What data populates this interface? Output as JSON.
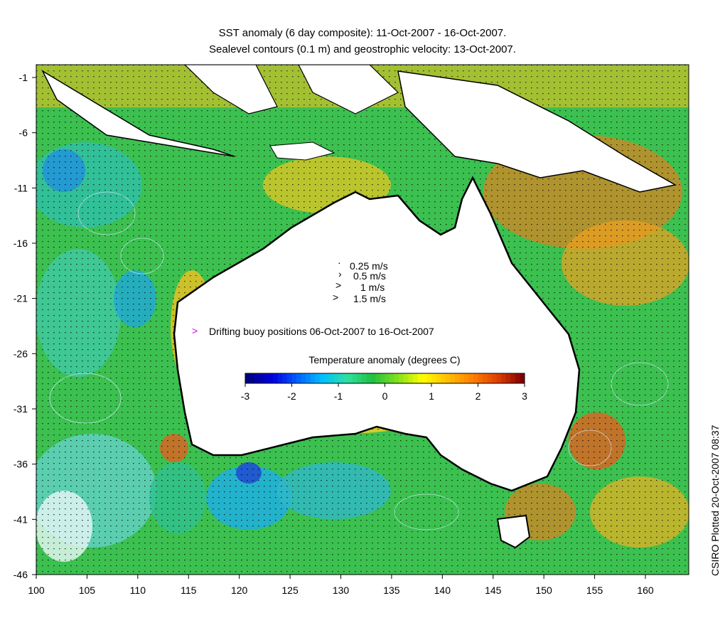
{
  "title_line1": "SST anomaly (6 day composite): 11-Oct-2007 - 16-Oct-2007.",
  "title_line2": "Sealevel contours (0.1 m) and geostrophic velocity: 13-Oct-2007.",
  "credit": "CSIRO Plotted 20-Oct-2007 08:37",
  "y_axis_ticks": [
    "-1",
    "-6",
    "-11",
    "-16",
    "-21",
    "-26",
    "-31",
    "-36",
    "-41",
    "-46"
  ],
  "x_axis_ticks": [
    "100",
    "105",
    "110",
    "115",
    "120",
    "125",
    "130",
    "135",
    "140",
    "145",
    "150",
    "155",
    "160"
  ],
  "velocity_legend": [
    "0.25 m/s",
    "0.5 m/s",
    "1 m/s",
    "1.5 m/s"
  ],
  "buoy_legend": {
    "marker": ">",
    "label": "Drifting buoy positions 06-Oct-2007 to 16-Oct-2007",
    "color": "#e000e0"
  },
  "colorbar": {
    "title": "Temperature anomaly (degrees C)",
    "ticks": [
      "-3",
      "-2",
      "-1",
      "0",
      "1",
      "2",
      "3"
    ],
    "range": [
      -3,
      3
    ],
    "colors": [
      "#00007f",
      "#0000e0",
      "#0060ff",
      "#00c0ff",
      "#30e0a0",
      "#20c040",
      "#80e020",
      "#ffff00",
      "#ffc000",
      "#ff8000",
      "#e04000",
      "#800000"
    ]
  },
  "colors": {
    "ocean_cool": "#20b0d0",
    "ocean_neutral": "#30c040",
    "ocean_warm": "#f0c020",
    "land": "#ffffff",
    "coast": "#000000",
    "contour": "#d0e0ff"
  }
}
